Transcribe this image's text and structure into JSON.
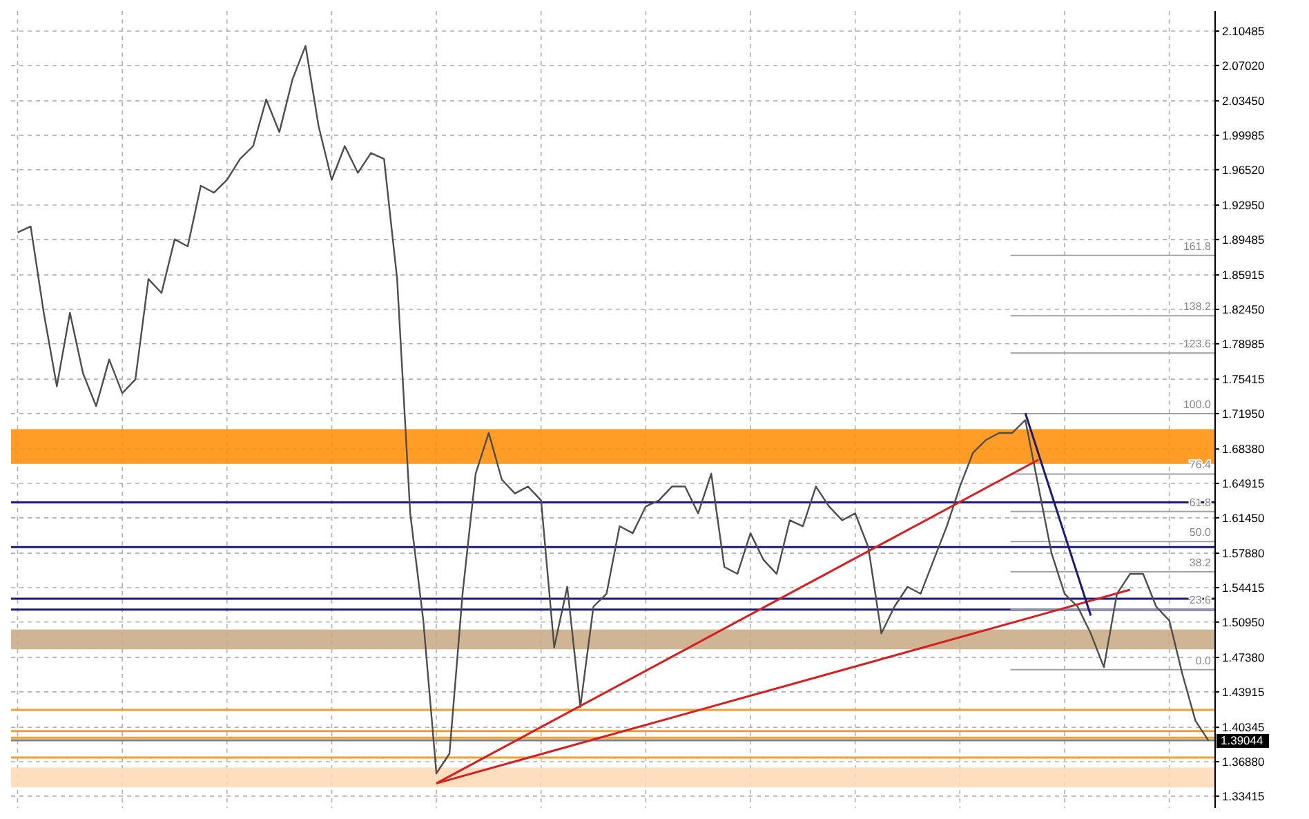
{
  "chart_data": {
    "type": "line",
    "categories": [
      null,
      null,
      null,
      null,
      null,
      null,
      null,
      null,
      null,
      null,
      null,
      null,
      null,
      null,
      null,
      null,
      null,
      null,
      null,
      null,
      null,
      null,
      null,
      null,
      null,
      null,
      null,
      null,
      null,
      null,
      null,
      null,
      null,
      null,
      null,
      null,
      null,
      null,
      null,
      null,
      null,
      null,
      null,
      null,
      null,
      null,
      null,
      null,
      null,
      null,
      null,
      null,
      null,
      null,
      null,
      null,
      null,
      null,
      null,
      null,
      null,
      null,
      null,
      null,
      null,
      null,
      null,
      null,
      null,
      null,
      null,
      null,
      null,
      null,
      null,
      null,
      null,
      null,
      null,
      null,
      null,
      null,
      null,
      null,
      null,
      null,
      null,
      null,
      null,
      null,
      null,
      null
    ],
    "tick_labels": "y",
    "grid": true,
    "ylim": [
      1.325,
      2.125
    ],
    "yticks": [
      {
        "value": 1.33415,
        "label": "1.33415"
      },
      {
        "value": 1.3688,
        "label": "1.36880"
      },
      {
        "value": 1.40345,
        "label": "1.40345"
      },
      {
        "value": 1.43915,
        "label": "1.43915"
      },
      {
        "value": 1.4738,
        "label": "1.47380"
      },
      {
        "value": 1.5095,
        "label": "1.50950"
      },
      {
        "value": 1.54415,
        "label": "1.54415"
      },
      {
        "value": 1.5788,
        "label": "1.57880"
      },
      {
        "value": 1.6145,
        "label": "1.61450"
      },
      {
        "value": 1.64915,
        "label": "1.64915"
      },
      {
        "value": 1.6838,
        "label": "1.68380"
      },
      {
        "value": 1.7195,
        "label": "1.71950"
      },
      {
        "value": 1.75415,
        "label": "1.75415"
      },
      {
        "value": 1.78985,
        "label": "1.78985"
      },
      {
        "value": 1.8245,
        "label": "1.82450"
      },
      {
        "value": 1.85915,
        "label": "1.85915"
      },
      {
        "value": 1.89485,
        "label": "1.89485"
      },
      {
        "value": 1.9295,
        "label": "1.92950"
      },
      {
        "value": 1.9652,
        "label": "1.96520"
      },
      {
        "value": 1.99985,
        "label": "1.99985"
      },
      {
        "value": 2.0345,
        "label": "2.03450"
      },
      {
        "value": 2.0702,
        "label": "2.07020"
      },
      {
        "value": 2.10485,
        "label": "2.10485"
      }
    ],
    "series": [
      {
        "color": "#4d4d4d",
        "values": [
          1.902,
          1.908,
          1.821,
          1.747,
          1.821,
          1.76,
          1.727,
          1.774,
          1.74,
          1.754,
          1.855,
          1.841,
          1.895,
          1.888,
          1.949,
          1.942,
          1.955,
          1.976,
          1.989,
          2.036,
          2.003,
          2.056,
          2.09,
          2.009,
          1.955,
          1.989,
          1.962,
          1.982,
          1.976,
          1.855,
          1.619,
          1.511,
          1.357,
          1.377,
          1.538,
          1.659,
          1.7,
          1.653,
          1.639,
          1.646,
          1.632,
          1.484,
          1.545,
          1.424,
          1.525,
          1.538,
          1.606,
          1.599,
          1.626,
          1.632,
          1.646,
          1.646,
          1.619,
          1.659,
          1.565,
          1.558,
          1.599,
          1.572,
          1.558,
          1.612,
          1.606,
          1.646,
          1.626,
          1.612,
          1.619,
          1.585,
          1.498,
          1.525,
          1.545,
          1.538,
          1.572,
          1.606,
          1.646,
          1.68,
          1.693,
          1.7,
          1.7,
          1.713,
          1.646,
          1.579,
          1.538,
          1.525,
          1.498,
          1.464,
          1.538,
          1.558,
          1.558,
          1.525,
          1.511,
          1.457,
          1.41,
          1.39
        ]
      },
      {
        "color": "#d42020",
        "values": [
          null,
          null,
          null,
          null,
          null,
          null,
          null,
          null,
          null,
          null,
          null,
          null,
          null,
          null,
          null,
          null,
          null,
          null,
          null,
          null,
          null,
          null,
          null,
          null,
          null,
          null,
          null,
          null,
          null,
          null,
          null,
          null,
          1.347,
          null,
          null,
          null,
          null,
          null,
          null,
          null,
          null,
          null,
          null,
          null,
          null,
          null,
          null,
          null,
          null,
          null,
          null,
          null,
          null,
          null,
          null,
          null,
          null,
          null,
          null,
          null,
          null,
          null,
          null,
          null,
          null,
          null,
          null,
          null,
          null,
          null,
          null,
          null,
          null,
          null,
          null,
          null,
          null,
          null,
          1.673,
          null,
          null,
          null,
          null,
          null,
          null,
          null,
          null,
          null,
          null,
          null,
          null,
          null
        ]
      },
      {
        "color": "#d42020",
        "values": [
          null,
          null,
          null,
          null,
          null,
          null,
          null,
          null,
          null,
          null,
          null,
          null,
          null,
          null,
          null,
          null,
          null,
          null,
          null,
          null,
          null,
          null,
          null,
          null,
          null,
          null,
          null,
          null,
          null,
          null,
          null,
          null,
          1.347,
          null,
          null,
          null,
          null,
          null,
          null,
          null,
          null,
          null,
          null,
          null,
          null,
          null,
          null,
          null,
          null,
          null,
          null,
          null,
          null,
          null,
          null,
          null,
          null,
          null,
          null,
          null,
          null,
          null,
          null,
          null,
          null,
          null,
          null,
          null,
          null,
          null,
          null,
          null,
          null,
          null,
          null,
          null,
          null,
          null,
          null,
          null,
          null,
          null,
          null,
          null,
          null,
          1.542,
          null,
          null,
          null,
          null,
          null,
          null
        ]
      },
      {
        "color": "#1a1a7a",
        "values": [
          null,
          null,
          null,
          null,
          null,
          null,
          null,
          null,
          null,
          null,
          null,
          null,
          null,
          null,
          null,
          null,
          null,
          null,
          null,
          null,
          null,
          null,
          null,
          null,
          null,
          null,
          null,
          null,
          null,
          null,
          null,
          null,
          null,
          null,
          null,
          null,
          null,
          null,
          null,
          null,
          null,
          null,
          null,
          null,
          null,
          null,
          null,
          null,
          null,
          null,
          null,
          null,
          null,
          null,
          null,
          null,
          null,
          null,
          null,
          null,
          null,
          null,
          null,
          null,
          null,
          null,
          null,
          null,
          null,
          null,
          null,
          null,
          null,
          null,
          null,
          null,
          null,
          1.72,
          null,
          null,
          null,
          null,
          1.516,
          null,
          null,
          null,
          null,
          null,
          null,
          null,
          null,
          null
        ]
      }
    ],
    "annotations": [
      {
        "text": "161.8",
        "y": 1.879
      },
      {
        "text": "138.2",
        "y": 1.818
      },
      {
        "text": "123.6",
        "y": 1.7804
      },
      {
        "text": "100.0",
        "y": 1.7195
      },
      {
        "text": "76.4",
        "y": 1.6586
      },
      {
        "text": "61.8",
        "y": 1.6209
      },
      {
        "text": "50.0",
        "y": 1.5905
      },
      {
        "text": "38.2",
        "y": 1.5601
      },
      {
        "text": "23.6",
        "y": 1.5224
      },
      {
        "text": "0.0",
        "y": 1.4615
      }
    ],
    "bands": [
      {
        "axis": "y",
        "from": 1.6688,
        "to": 1.7038,
        "color": "#ff8c00"
      },
      {
        "axis": "y",
        "from": 1.482,
        "to": 1.502,
        "color": "#c8a882"
      },
      {
        "axis": "y",
        "from": 1.343,
        "to": 1.363,
        "color": "#fdd9b5"
      }
    ],
    "ref_lines": [
      {
        "axis": "y",
        "value": 1.585,
        "color": "#1a1a7a"
      },
      {
        "axis": "y",
        "value": 1.63,
        "color": "#1a1a7a"
      },
      {
        "axis": "y",
        "value": 1.533,
        "color": "#1a1a7a"
      },
      {
        "axis": "y",
        "value": 1.522,
        "color": "#1a1a7a"
      },
      {
        "axis": "y",
        "value": 1.421,
        "color": "#f0a030"
      },
      {
        "axis": "y",
        "value": 1.3996,
        "color": "#f0a030"
      },
      {
        "axis": "y",
        "value": 1.393,
        "color": "#f0a030"
      },
      {
        "axis": "y",
        "value": 1.373,
        "color": "#f0a030"
      },
      {
        "axis": "y",
        "value": 1.879,
        "color": "#a0a0a0"
      },
      {
        "axis": "y",
        "value": 1.818,
        "color": "#a0a0a0"
      },
      {
        "axis": "y",
        "value": 1.7804,
        "color": "#a0a0a0"
      },
      {
        "axis": "y",
        "value": 1.7195,
        "color": "#a0a0a0"
      },
      {
        "axis": "y",
        "value": 1.6586,
        "color": "#a0a0a0"
      },
      {
        "axis": "y",
        "value": 1.6209,
        "color": "#a0a0a0"
      },
      {
        "axis": "y",
        "value": 1.5905,
        "color": "#a0a0a0"
      },
      {
        "axis": "y",
        "value": 1.5601,
        "color": "#a0a0a0"
      },
      {
        "axis": "y",
        "value": 1.5224,
        "color": "#a0a0a0"
      },
      {
        "axis": "y",
        "value": 1.4615,
        "color": "#a0a0a0"
      },
      {
        "axis": "y",
        "value": 1.39044,
        "label": "1.39044",
        "color": "#808080"
      }
    ]
  }
}
